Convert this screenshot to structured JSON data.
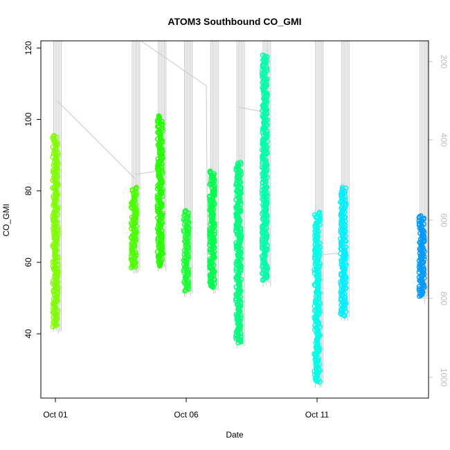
{
  "chart_data": {
    "type": "scatter",
    "title": "ATOM3 Southbound CO_GMI",
    "xlabel": "Date",
    "ylabel": "CO_GMI",
    "x_ticks": [
      "Oct 01",
      "Oct 06",
      "Oct 11"
    ],
    "x_range": [
      "2016-10-01",
      "2016-10-15"
    ],
    "y_ticks": [
      40,
      60,
      80,
      100,
      120
    ],
    "ylim": [
      22,
      122
    ],
    "y2_ticks": [
      200,
      400,
      600,
      800,
      1000
    ],
    "y2_label": "",
    "y2_reversed": true,
    "grid": false,
    "legend": "none",
    "colors": {
      "pressure_trace": "#c8c8c8",
      "axis": "#000000",
      "right_axis": "#bdbdbd"
    },
    "series": [
      {
        "x": "2016-10-01",
        "ymin": 42,
        "ymax": 95.5,
        "color": "#80ff00"
      },
      {
        "x": "2016-10-04",
        "ymin": 58.5,
        "ymax": 81,
        "color": "#4cff00"
      },
      {
        "x": "2016-10-05",
        "ymin": 59,
        "ymax": 101,
        "color": "#26ff00"
      },
      {
        "x": "2016-10-06",
        "ymin": 52,
        "ymax": 74.5,
        "color": "#1aff33"
      },
      {
        "x": "2016-10-07",
        "ymin": 53,
        "ymax": 85.5,
        "color": "#00ff4c"
      },
      {
        "x": "2016-10-08",
        "ymin": 37.5,
        "ymax": 88,
        "color": "#00ff80"
      },
      {
        "x": "2016-10-09",
        "ymin": 55,
        "ymax": 118,
        "color": "#00ffa8"
      },
      {
        "x": "2016-10-11",
        "ymin": 26.5,
        "ymax": 74,
        "color": "#00ffe8"
      },
      {
        "x": "2016-10-12",
        "ymin": 45,
        "ymax": 81,
        "color": "#00f0ff"
      },
      {
        "x": "2016-10-15",
        "ymin": 50.5,
        "ymax": 73,
        "color": "#0099ff"
      }
    ]
  }
}
